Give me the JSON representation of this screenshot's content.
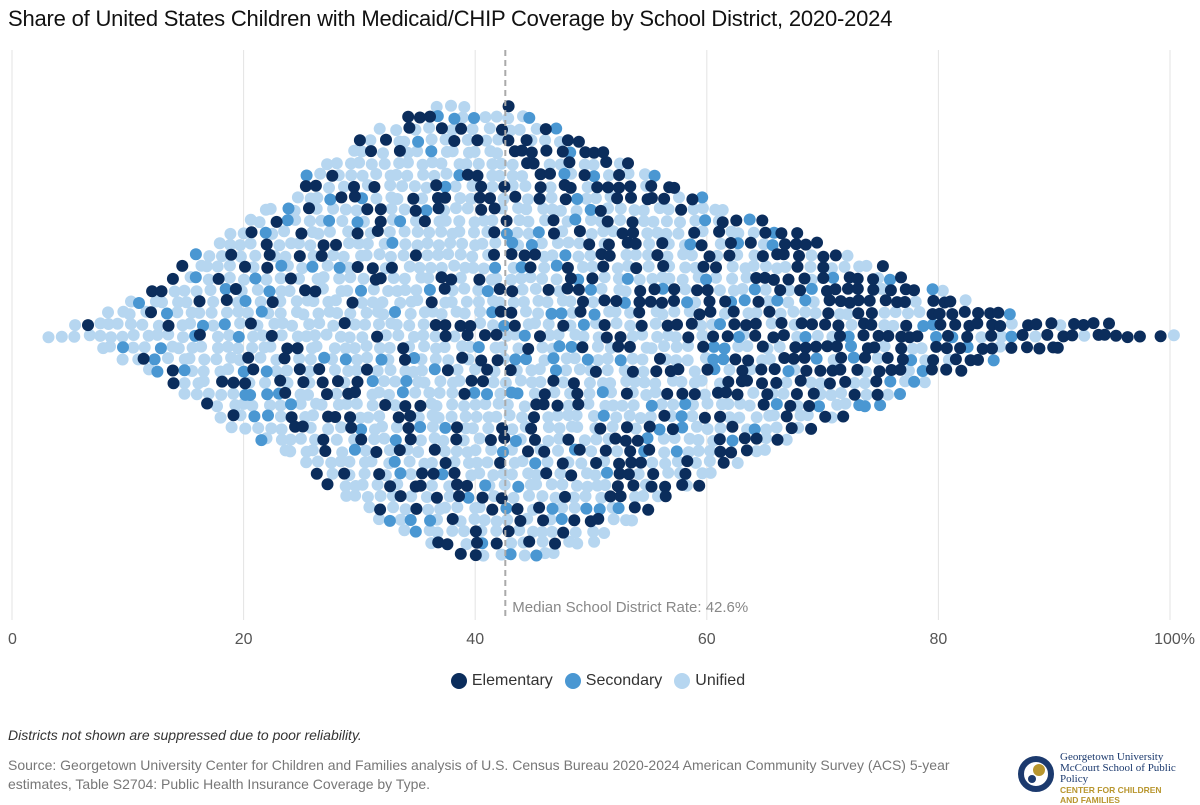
{
  "title": "Share of United States Children with Medicaid/CHIP Coverage by School District, 2020-2024",
  "chart_data": {
    "type": "scatter",
    "subtype": "beeswarm",
    "title": "Share of United States Children with Medicaid/CHIP Coverage by School District, 2020-2024",
    "xlabel": "",
    "xlim": [
      0,
      100
    ],
    "x_ticks": [
      "0",
      "20",
      "40",
      "60",
      "80",
      "100%"
    ],
    "x_tick_values": [
      0,
      20,
      40,
      60,
      80,
      100
    ],
    "grid": "vertical",
    "median": {
      "value": 42.6,
      "label": "Median School District Rate: 42.6%"
    },
    "series": [
      {
        "name": "Elementary",
        "color": "#0b2d5c"
      },
      {
        "name": "Secondary",
        "color": "#4a97d2"
      },
      {
        "name": "Unified",
        "color": "#b6d6f0"
      }
    ],
    "bin_start": 3,
    "bin_width": 1,
    "district_counts_per_bin": [
      1,
      1,
      2,
      2,
      3,
      4,
      5,
      6,
      7,
      8,
      9,
      11,
      12,
      14,
      15,
      17,
      18,
      19,
      20,
      22,
      22,
      23,
      25,
      28,
      29,
      30,
      31,
      33,
      34,
      35,
      36,
      37,
      38,
      38,
      39,
      40,
      40,
      40,
      39,
      39,
      39,
      40,
      39,
      38,
      37,
      37,
      35,
      34,
      33,
      33,
      31,
      30,
      29,
      28,
      27,
      27,
      25,
      24,
      23,
      22,
      21,
      21,
      20,
      19,
      18,
      18,
      16,
      16,
      15,
      14,
      13,
      13,
      12,
      11,
      10,
      9,
      8,
      8,
      7,
      6,
      5,
      5,
      4,
      4,
      3,
      3,
      3,
      3,
      2,
      2,
      2,
      2,
      1,
      1,
      1,
      0,
      1,
      1
    ],
    "elementary_share_by_decile": [
      0.15,
      0.18,
      0.2,
      0.22,
      0.28,
      0.38,
      0.5,
      0.6,
      0.7,
      0.7
    ],
    "secondary_share": 0.1,
    "legend": "bottom-center"
  },
  "legend": {
    "items": [
      "Elementary",
      "Secondary",
      "Unified"
    ]
  },
  "footnote": "Districts not shown are suppressed due to poor reliability.",
  "source": "Source: Georgetown University Center for Children and Families analysis of U.S. Census Bureau 2020-2024 American Community Survey (ACS) 5-year estimates, Table S2704: Public Health Insurance Coverage by Type.",
  "logo": {
    "line1": "Georgetown University",
    "line2": "McCourt School of Public Policy",
    "line3": "CENTER FOR CHILDREN",
    "line4": "AND FAMILIES"
  }
}
